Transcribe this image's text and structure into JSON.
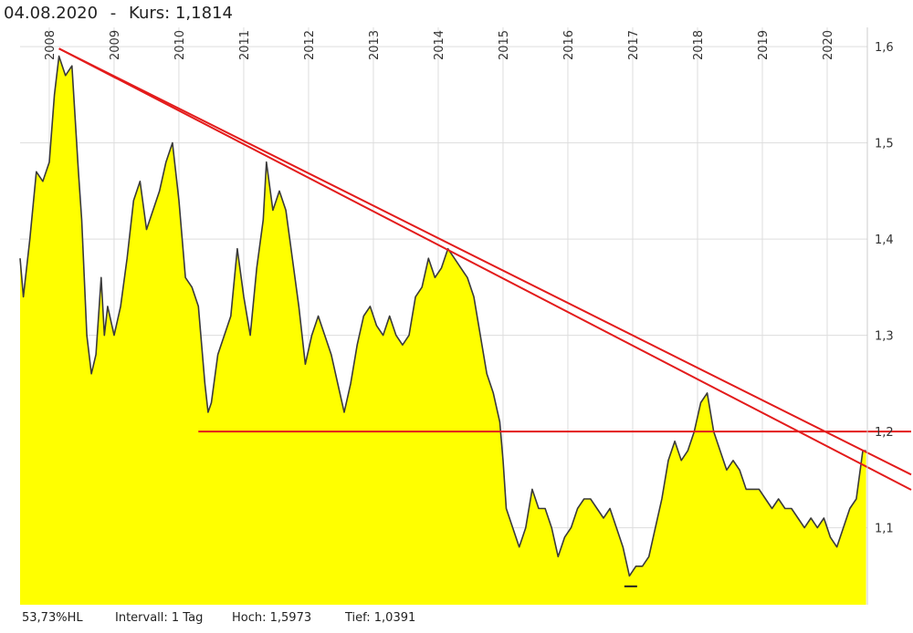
{
  "header": {
    "date": "04.08.2020",
    "separator": "-",
    "price_label": "Kurs:",
    "price_value": "1,1814"
  },
  "footer": {
    "range_pct": "53,73%HL",
    "interval": "Intervall: 1 Tag",
    "high": "Hoch: 1,5973",
    "low": "Tief: 1,0391"
  },
  "colors": {
    "area_fill": "#ffff00",
    "price_line": "#3a3a3a",
    "trend_lines": "#e31b1b",
    "grid": "#dddddd"
  },
  "chart_data": {
    "type": "area",
    "title": "",
    "xlabel": "",
    "ylabel": "",
    "x_tick_labels": [
      "2008",
      "2009",
      "2010",
      "2011",
      "2012",
      "2013",
      "2014",
      "2015",
      "2016",
      "2017",
      "2018",
      "2019",
      "2020"
    ],
    "y_tick_labels": [
      "1,6",
      "1,5",
      "1,4",
      "1,3",
      "1,2",
      "1,1"
    ],
    "y_ticks": [
      1.6,
      1.5,
      1.4,
      1.3,
      1.2,
      1.1
    ],
    "ylim": [
      1.02,
      1.62
    ],
    "xlim": [
      2007.55,
      2020.62
    ],
    "grid": true,
    "y_axis_side": "right",
    "series": [
      {
        "x": [
          2007.55,
          2007.6,
          2007.7,
          2007.8,
          2007.9,
          2008.0,
          2008.08,
          2008.15,
          2008.25,
          2008.35,
          2008.45,
          2008.5,
          2008.58,
          2008.65,
          2008.72,
          2008.8,
          2008.85,
          2008.9,
          2009.0,
          2009.1,
          2009.2,
          2009.3,
          2009.4,
          2009.5,
          2009.6,
          2009.7,
          2009.8,
          2009.9,
          2010.0,
          2010.1,
          2010.2,
          2010.3,
          2010.4,
          2010.45,
          2010.5,
          2010.6,
          2010.7,
          2010.8,
          2010.9,
          2011.0,
          2011.1,
          2011.2,
          2011.3,
          2011.35,
          2011.45,
          2011.55,
          2011.65,
          2011.75,
          2011.85,
          2011.95,
          2012.05,
          2012.15,
          2012.25,
          2012.35,
          2012.45,
          2012.55,
          2012.65,
          2012.75,
          2012.85,
          2012.95,
          2013.05,
          2013.15,
          2013.25,
          2013.35,
          2013.45,
          2013.55,
          2013.65,
          2013.75,
          2013.85,
          2013.95,
          2014.05,
          2014.15,
          2014.25,
          2014.35,
          2014.45,
          2014.55,
          2014.65,
          2014.75,
          2014.85,
          2014.95,
          2015.0,
          2015.05,
          2015.15,
          2015.25,
          2015.35,
          2015.45,
          2015.55,
          2015.65,
          2015.75,
          2015.85,
          2015.95,
          2016.05,
          2016.15,
          2016.25,
          2016.35,
          2016.45,
          2016.55,
          2016.65,
          2016.75,
          2016.85,
          2016.95,
          2017.05,
          2017.15,
          2017.25,
          2017.35,
          2017.45,
          2017.55,
          2017.65,
          2017.75,
          2017.85,
          2017.95,
          2018.05,
          2018.15,
          2018.25,
          2018.35,
          2018.45,
          2018.55,
          2018.65,
          2018.75,
          2018.85,
          2018.95,
          2019.05,
          2019.15,
          2019.25,
          2019.35,
          2019.45,
          2019.55,
          2019.65,
          2019.75,
          2019.85,
          2019.95,
          2020.05,
          2020.15,
          2020.25,
          2020.35,
          2020.45,
          2020.55,
          2020.6
        ],
        "y": [
          1.38,
          1.34,
          1.4,
          1.47,
          1.46,
          1.48,
          1.55,
          1.59,
          1.57,
          1.58,
          1.47,
          1.42,
          1.3,
          1.26,
          1.28,
          1.36,
          1.3,
          1.33,
          1.3,
          1.33,
          1.38,
          1.44,
          1.46,
          1.41,
          1.43,
          1.45,
          1.48,
          1.5,
          1.44,
          1.36,
          1.35,
          1.33,
          1.25,
          1.22,
          1.23,
          1.28,
          1.3,
          1.32,
          1.39,
          1.34,
          1.3,
          1.37,
          1.42,
          1.48,
          1.43,
          1.45,
          1.43,
          1.38,
          1.33,
          1.27,
          1.3,
          1.32,
          1.3,
          1.28,
          1.25,
          1.22,
          1.25,
          1.29,
          1.32,
          1.33,
          1.31,
          1.3,
          1.32,
          1.3,
          1.29,
          1.3,
          1.34,
          1.35,
          1.38,
          1.36,
          1.37,
          1.39,
          1.38,
          1.37,
          1.36,
          1.34,
          1.3,
          1.26,
          1.24,
          1.21,
          1.17,
          1.12,
          1.1,
          1.08,
          1.1,
          1.14,
          1.12,
          1.12,
          1.1,
          1.07,
          1.09,
          1.1,
          1.12,
          1.13,
          1.13,
          1.12,
          1.11,
          1.12,
          1.1,
          1.08,
          1.05,
          1.06,
          1.06,
          1.07,
          1.1,
          1.13,
          1.17,
          1.19,
          1.17,
          1.18,
          1.2,
          1.23,
          1.24,
          1.2,
          1.18,
          1.16,
          1.17,
          1.16,
          1.14,
          1.14,
          1.14,
          1.13,
          1.12,
          1.13,
          1.12,
          1.12,
          1.11,
          1.1,
          1.11,
          1.1,
          1.11,
          1.09,
          1.08,
          1.1,
          1.12,
          1.13,
          1.18,
          1.18
        ]
      }
    ],
    "min_marker": {
      "x": 2016.97,
      "y": 1.0391
    },
    "trend_lines": [
      {
        "x1": 2008.15,
        "y1": 1.598,
        "x2": 2020.62,
        "y2": 1.163
      },
      {
        "x1": 2008.15,
        "y1": 1.598,
        "x2": 2020.62,
        "y2": 1.178
      },
      {
        "x1": 2010.3,
        "y1": 1.2,
        "x2": 2020.62,
        "y2": 1.2
      }
    ]
  }
}
